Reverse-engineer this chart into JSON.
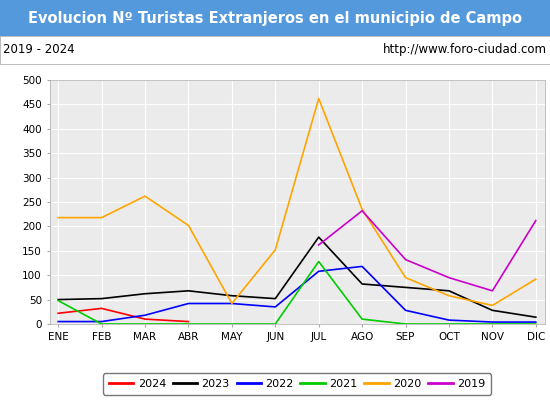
{
  "title": "Evolucion Nº Turistas Extranjeros en el municipio de Campo",
  "subtitle_left": "2019 - 2024",
  "subtitle_right": "http://www.foro-ciudad.com",
  "months": [
    "ENE",
    "FEB",
    "MAR",
    "ABR",
    "MAY",
    "JUN",
    "JUL",
    "AGO",
    "SEP",
    "OCT",
    "NOV",
    "DIC"
  ],
  "ylim": [
    0,
    500
  ],
  "yticks": [
    0,
    50,
    100,
    150,
    200,
    250,
    300,
    350,
    400,
    450,
    500
  ],
  "series": {
    "2024": {
      "color": "#ff0000",
      "data": [
        22,
        32,
        10,
        5,
        null,
        null,
        null,
        null,
        null,
        null,
        null,
        null
      ]
    },
    "2023": {
      "color": "#000000",
      "data": [
        50,
        52,
        62,
        68,
        58,
        52,
        178,
        82,
        75,
        68,
        28,
        14
      ]
    },
    "2022": {
      "color": "#0000ff",
      "data": [
        5,
        5,
        18,
        42,
        42,
        35,
        108,
        118,
        28,
        8,
        4,
        4
      ]
    },
    "2021": {
      "color": "#00cc00",
      "data": [
        48,
        0,
        0,
        0,
        0,
        0,
        128,
        10,
        0,
        0,
        0,
        0
      ]
    },
    "2020": {
      "color": "#ffa500",
      "data": [
        218,
        218,
        262,
        202,
        42,
        152,
        462,
        235,
        95,
        58,
        38,
        92
      ]
    },
    "2019": {
      "color": "#cc00cc",
      "data": [
        null,
        null,
        null,
        null,
        null,
        null,
        162,
        232,
        132,
        95,
        68,
        212
      ]
    }
  },
  "title_bg_color": "#5599dd",
  "title_text_color": "#ffffff",
  "plot_bg_color": "#ebebeb",
  "grid_color": "#ffffff",
  "subtitle_bg_color": "#ffffff",
  "title_fontsize": 10.5,
  "subtitle_fontsize": 8.5,
  "tick_fontsize": 7.5,
  "legend_fontsize": 8
}
